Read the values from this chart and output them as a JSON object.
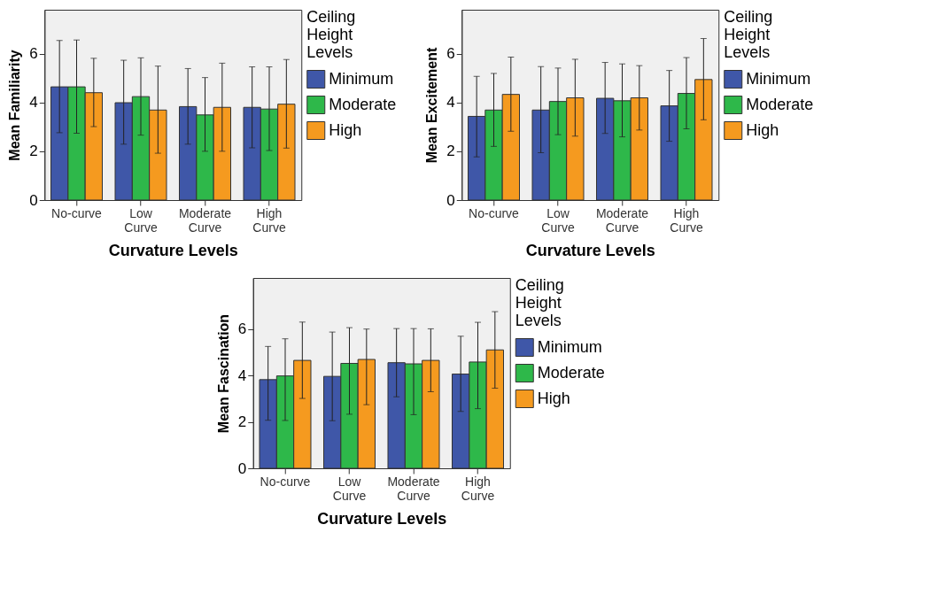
{
  "chart_data": [
    {
      "type": "bar",
      "xlabel": "Curvature Levels",
      "ylabel": "Mean Familiarity",
      "legend_title": "Ceiling Height Levels",
      "legend": "right",
      "grid": false,
      "categories": [
        "No-curve",
        "Low Curve",
        "Moderate Curve",
        "High Curve"
      ],
      "ylim": [
        0,
        7.8
      ],
      "yticks": [
        0,
        2,
        4,
        6
      ],
      "series": [
        {
          "name": "Minimum",
          "color": "#3f57a8",
          "values": [
            4.64,
            3.99,
            3.83,
            3.8
          ],
          "errors": [
            [
              2.76,
              6.54
            ],
            [
              2.29,
              5.73
            ],
            [
              2.29,
              5.39
            ],
            [
              2.14,
              5.46
            ]
          ]
        },
        {
          "name": "Moderate",
          "color": "#2eb84a",
          "values": [
            4.64,
            4.24,
            3.49,
            3.73
          ],
          "errors": [
            [
              2.74,
              6.56
            ],
            [
              2.66,
              5.83
            ],
            [
              2.0,
              5.02
            ],
            [
              2.03,
              5.46
            ]
          ]
        },
        {
          "name": "High",
          "color": "#f59a1f",
          "values": [
            4.4,
            3.69,
            3.8,
            3.93
          ],
          "errors": [
            [
              3.01,
              5.81
            ],
            [
              1.92,
              5.49
            ],
            [
              2.0,
              5.61
            ],
            [
              2.13,
              5.76
            ]
          ]
        }
      ]
    },
    {
      "type": "bar",
      "xlabel": "Curvature Levels",
      "ylabel": "Mean Excitement",
      "legend_title": "Ceiling Height Levels",
      "legend": "right",
      "grid": false,
      "categories": [
        "No-curve",
        "Low Curve",
        "Moderate Curve",
        "High Curve"
      ],
      "ylim": [
        0,
        7.8
      ],
      "yticks": [
        0,
        2,
        4,
        6
      ],
      "series": [
        {
          "name": "Minimum",
          "color": "#3f57a8",
          "values": [
            3.43,
            3.69,
            4.17,
            3.86
          ],
          "errors": [
            [
              1.77,
              5.07
            ],
            [
              1.94,
              5.47
            ],
            [
              2.73,
              5.64
            ],
            [
              2.41,
              5.31
            ]
          ]
        },
        {
          "name": "Moderate",
          "color": "#2eb84a",
          "values": [
            3.69,
            4.04,
            4.07,
            4.37
          ],
          "errors": [
            [
              2.2,
              5.19
            ],
            [
              2.68,
              5.41
            ],
            [
              2.59,
              5.58
            ],
            [
              2.92,
              5.84
            ]
          ]
        },
        {
          "name": "High",
          "color": "#f59a1f",
          "values": [
            4.33,
            4.19,
            4.19,
            4.94
          ],
          "errors": [
            [
              2.82,
              5.86
            ],
            [
              2.62,
              5.77
            ],
            [
              2.87,
              5.51
            ],
            [
              3.29,
              6.62
            ]
          ]
        }
      ]
    },
    {
      "type": "bar",
      "xlabel": "Curvature Levels",
      "ylabel": "Mean Fascination",
      "legend_title": "Ceiling Height Levels",
      "legend": "right",
      "grid": false,
      "categories": [
        "No-curve",
        "Low Curve",
        "Moderate Curve",
        "High Curve"
      ],
      "ylim": [
        0,
        8.2
      ],
      "yticks": [
        0,
        2,
        4,
        6
      ],
      "series": [
        {
          "name": "Minimum",
          "color": "#3f57a8",
          "values": [
            3.82,
            3.96,
            4.55,
            4.06
          ],
          "errors": [
            [
              2.07,
              5.25
            ],
            [
              2.05,
              5.87
            ],
            [
              3.08,
              6.02
            ],
            [
              2.45,
              5.69
            ]
          ]
        },
        {
          "name": "Moderate",
          "color": "#2eb84a",
          "values": [
            3.98,
            4.52,
            4.5,
            4.58
          ],
          "errors": [
            [
              2.06,
              5.58
            ],
            [
              2.33,
              6.06
            ],
            [
              2.31,
              6.02
            ],
            [
              2.57,
              6.29
            ]
          ]
        },
        {
          "name": "High",
          "color": "#f59a1f",
          "values": [
            4.65,
            4.69,
            4.65,
            5.1
          ],
          "errors": [
            [
              3.01,
              6.3
            ],
            [
              2.74,
              6.0
            ],
            [
              3.3,
              6.01
            ],
            [
              3.45,
              6.75
            ]
          ]
        }
      ]
    }
  ]
}
